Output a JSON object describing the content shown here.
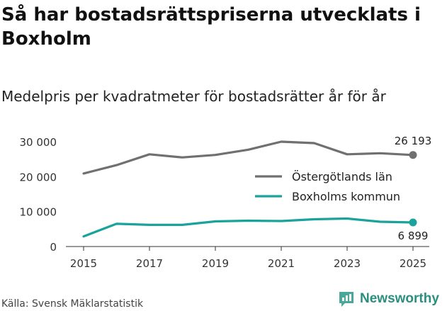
{
  "title": "Så har bostadsrättspriserna utvecklats i Boxholm",
  "subtitle": "Medelpris per kvadratmeter för bostadsrätter år för år",
  "source": "Källa: Svensk Mäklarstatistik",
  "brand": {
    "name": "Newsworthy",
    "icon": "newsworthy-logo-icon",
    "color": "#2b8f80"
  },
  "chart_data": {
    "type": "line",
    "title": "Så har bostadsrättspriserna utvecklats i Boxholm",
    "subtitle": "Medelpris per kvadratmeter för bostadsrätter år för år",
    "xlabel": "",
    "ylabel": "",
    "x": [
      2015,
      2016,
      2017,
      2018,
      2019,
      2020,
      2021,
      2022,
      2023,
      2024,
      2025
    ],
    "xticks": [
      2015,
      2017,
      2019,
      2021,
      2023,
      2025
    ],
    "xtick_labels": [
      "2015",
      "2017",
      "2019",
      "2021",
      "2023",
      "2025"
    ],
    "ylim": [
      0,
      30000
    ],
    "yticks": [
      0,
      10000,
      20000,
      30000
    ],
    "ytick_labels": [
      "0",
      "10 000",
      "20 000",
      "30 000"
    ],
    "grid": false,
    "legend_position": "right",
    "series": [
      {
        "name": "Östergötlands län",
        "color": "#707070",
        "values": [
          20900,
          23300,
          26400,
          25500,
          26200,
          27700,
          30000,
          29600,
          26400,
          26700,
          26193
        ],
        "end_label": "26 193",
        "end_label_position": "above"
      },
      {
        "name": "Boxholms kommun",
        "color": "#1aa39a",
        "values": [
          2900,
          6500,
          6200,
          6200,
          7200,
          7400,
          7300,
          7800,
          8000,
          7100,
          6899
        ],
        "end_label": "6 899",
        "end_label_position": "below"
      }
    ]
  }
}
